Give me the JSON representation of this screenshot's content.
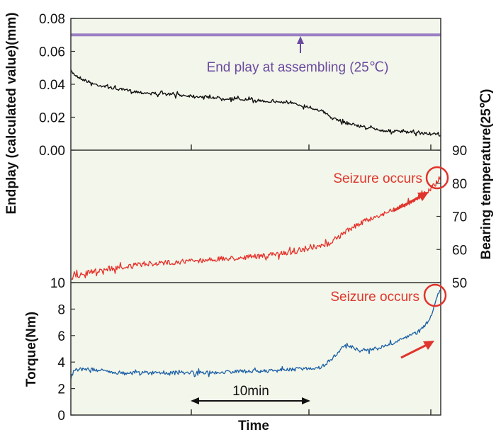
{
  "colors": {
    "panel_bg": "#f3f6ea",
    "frame": "#333333",
    "endplay": "#111111",
    "assembly_line": "#9b7fc4",
    "temperature": "#e5302a",
    "torque": "#1a5fa6",
    "annotation_red": "#e0342c",
    "annotation_purple": "#6a4aa0"
  },
  "chart_data": [
    {
      "type": "line",
      "panel": "endplay",
      "ylabel": "Endplay (calculated value)(mm)",
      "ylim": [
        0,
        0.08
      ],
      "yticks": [
        "0.00",
        "0.02",
        "0.04",
        "0.06",
        "0.08"
      ],
      "x_unit": "min",
      "xlim": [
        0,
        31
      ],
      "series": [
        {
          "key": "endplay",
          "x": [
            0,
            0.3,
            1,
            2,
            4,
            6,
            8,
            10,
            12,
            14,
            16,
            18,
            19.5,
            21,
            22,
            24,
            26,
            28,
            30,
            31
          ],
          "y": [
            0.048,
            0.046,
            0.043,
            0.04,
            0.037,
            0.035,
            0.034,
            0.033,
            0.032,
            0.031,
            0.03,
            0.029,
            0.027,
            0.024,
            0.019,
            0.015,
            0.012,
            0.011,
            0.01,
            0.009
          ]
        },
        {
          "key": "assembly",
          "x": [
            0,
            31
          ],
          "y": [
            0.07,
            0.07
          ]
        }
      ],
      "annotations": [
        {
          "text": "End play at assembling (25℃)",
          "x": 19.5,
          "y": 0.07
        }
      ]
    },
    {
      "type": "line",
      "panel": "temperature",
      "ylabel": "Bearing temperature(25℃)",
      "ylim": [
        50,
        90
      ],
      "yticks": [
        "50",
        "60",
        "70",
        "80",
        "90"
      ],
      "x_unit": "min",
      "xlim": [
        0,
        31
      ],
      "series": [
        {
          "key": "temperature",
          "x": [
            0,
            1,
            2,
            4,
            6,
            8,
            10,
            12,
            14,
            16,
            18,
            20,
            21.5,
            22.5,
            24,
            26,
            28,
            29.5,
            30.5,
            31
          ],
          "y": [
            51.5,
            52.5,
            53.5,
            54.5,
            55.5,
            56.0,
            56.5,
            57.0,
            57.5,
            58.0,
            59.0,
            60.0,
            61.5,
            64.0,
            67.5,
            70.5,
            73.5,
            76.5,
            79.5,
            82.0
          ]
        }
      ],
      "annotations": [
        {
          "text": "Seizure occurs",
          "x": 31,
          "y": 82
        }
      ]
    },
    {
      "type": "line",
      "panel": "torque",
      "ylabel": "Torque(Nm)",
      "ylim": [
        0,
        10
      ],
      "yticks": [
        "0",
        "2",
        "4",
        "6",
        "8",
        "10"
      ],
      "x_unit": "min",
      "xlim": [
        0,
        31
      ],
      "xlabel": "Time",
      "series": [
        {
          "key": "torque",
          "x": [
            0,
            0.3,
            1,
            2,
            4,
            6,
            8,
            10,
            12,
            14,
            16,
            18,
            21,
            21.8,
            22.3,
            23,
            23.8,
            25,
            26,
            27,
            28,
            29,
            29.8,
            30.3,
            30.7,
            31
          ],
          "y": [
            2.8,
            3.4,
            3.5,
            3.4,
            3.2,
            3.2,
            3.2,
            3.2,
            3.2,
            3.3,
            3.3,
            3.4,
            3.6,
            4.2,
            4.6,
            5.4,
            5.0,
            4.9,
            5.1,
            5.4,
            5.8,
            6.2,
            6.8,
            7.8,
            9.0,
            9.4
          ]
        }
      ],
      "annotations": [
        {
          "text": "Seizure occurs",
          "x": 31,
          "y": 9.4
        }
      ]
    }
  ],
  "scale_bar": {
    "label": "10min",
    "x_start": 10,
    "x_end": 20
  }
}
